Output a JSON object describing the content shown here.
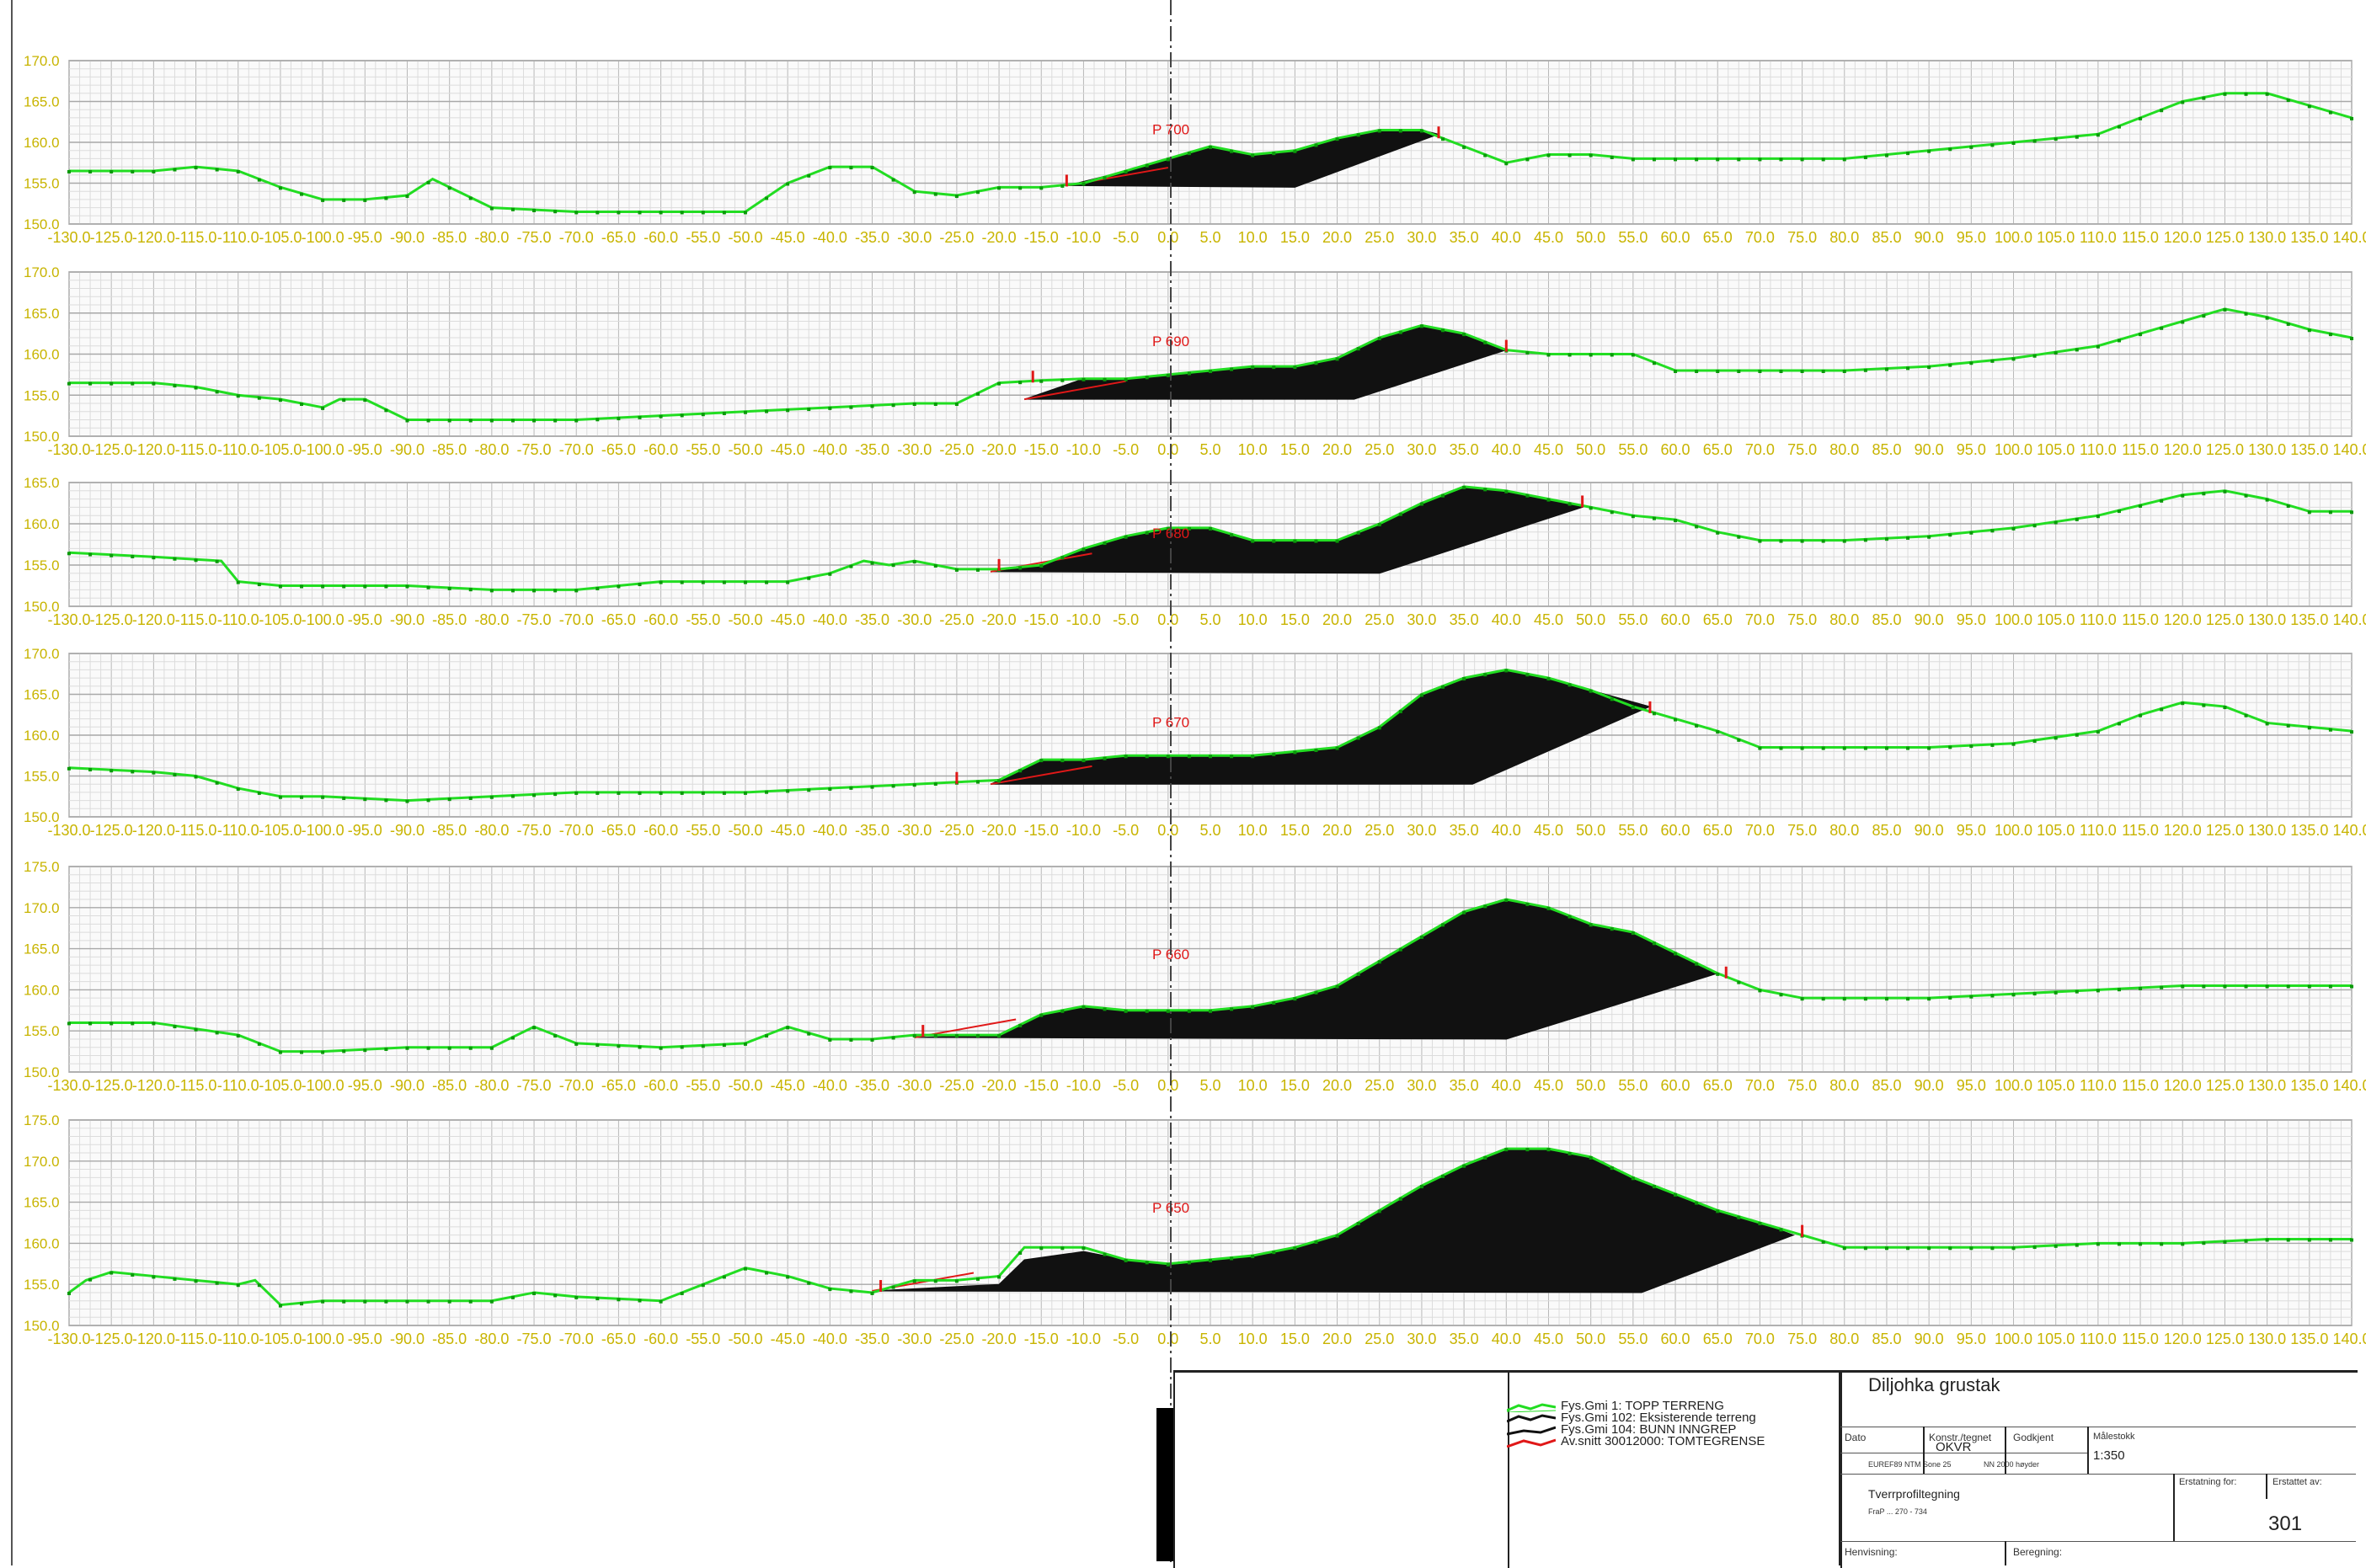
{
  "chart_data": [
    {
      "type": "area",
      "profile_label": "P 700",
      "ylim": [
        150,
        170
      ],
      "yticks": [
        "170.0",
        "165.0",
        "160.0",
        "155.0",
        "150.0"
      ],
      "xlim": [
        -130,
        140
      ],
      "terrain": {
        "x": [
          -130,
          -120,
          -115,
          -110,
          -105,
          -100,
          -95,
          -90,
          -87,
          -85,
          -80,
          -70,
          -60,
          -55,
          -50,
          -45,
          -40,
          -35,
          -30,
          -25,
          -20,
          -15,
          -10,
          -5,
          0,
          5,
          10,
          15,
          20,
          25,
          30,
          35,
          40,
          45,
          50,
          55,
          60,
          70,
          80,
          90,
          100,
          110,
          115,
          120,
          125,
          130,
          135,
          140
        ],
        "y": [
          156.5,
          156.5,
          157,
          156.5,
          154.5,
          153,
          153,
          153.5,
          155.5,
          154.5,
          152,
          151.5,
          151.5,
          151.5,
          151.5,
          155,
          157,
          157,
          154,
          153.5,
          154.5,
          154.5,
          155,
          156.5,
          158,
          159.5,
          158.5,
          159,
          160.5,
          161.5,
          161.5,
          159.5,
          157.5,
          158.5,
          158.5,
          158,
          158,
          158,
          158,
          159,
          160,
          161,
          163,
          165,
          166,
          166,
          164.5,
          163
        ]
      },
      "fill": {
        "x": [
          -12,
          -5,
          0,
          5,
          10,
          15,
          20,
          25,
          30,
          32,
          15
        ],
        "y": [
          154.7,
          156.5,
          158,
          159.5,
          158.5,
          159,
          160.5,
          161.5,
          161.5,
          161,
          154.5
        ]
      },
      "fill_base_right": 14,
      "limits": [
        -12,
        32
      ]
    },
    {
      "type": "area",
      "profile_label": "P 690",
      "ylim": [
        150,
        170
      ],
      "yticks": [
        "170.0",
        "165.0",
        "160.0",
        "155.0",
        "150.0"
      ],
      "xlim": [
        -130,
        140
      ],
      "terrain": {
        "x": [
          -130,
          -120,
          -115,
          -110,
          -105,
          -100,
          -98,
          -95,
          -90,
          -80,
          -70,
          -60,
          -50,
          -40,
          -30,
          -25,
          -20,
          -15,
          -10,
          -5,
          0,
          5,
          10,
          15,
          20,
          25,
          30,
          35,
          40,
          45,
          50,
          55,
          60,
          70,
          80,
          90,
          100,
          110,
          120,
          125,
          130,
          135,
          140
        ],
        "y": [
          156.5,
          156.5,
          156,
          155,
          154.5,
          153.5,
          154.5,
          154.5,
          152,
          152,
          152,
          152.5,
          153,
          153.5,
          154,
          154,
          156.5,
          156.8,
          157,
          157,
          157.5,
          158,
          158.5,
          158.5,
          159.5,
          162,
          163.5,
          162.5,
          160.5,
          160,
          160,
          160,
          158,
          158,
          158,
          158.5,
          159.5,
          161,
          164,
          165.5,
          164.5,
          163,
          162
        ]
      },
      "fill": {
        "x": [
          -17,
          -10,
          -5,
          0,
          5,
          10,
          15,
          20,
          25,
          30,
          35,
          40,
          22
        ],
        "y": [
          154.5,
          157,
          157,
          157.5,
          158,
          158.5,
          158.5,
          159.5,
          162,
          163.5,
          162.5,
          160.5,
          154.5
        ]
      },
      "fill_base_right": 22,
      "limits": [
        -16,
        40
      ]
    },
    {
      "type": "area",
      "profile_label": "P 680",
      "ylim": [
        150,
        165
      ],
      "yticks": [
        "165.0",
        "160.0",
        "155.0",
        "150.0"
      ],
      "xlim": [
        -130,
        140
      ],
      "terrain": {
        "x": [
          -130,
          -120,
          -112,
          -110,
          -105,
          -100,
          -90,
          -80,
          -70,
          -65,
          -60,
          -50,
          -45,
          -40,
          -36,
          -33,
          -30,
          -25,
          -20,
          -15,
          -10,
          -5,
          0,
          5,
          10,
          15,
          20,
          25,
          30,
          35,
          40,
          45,
          50,
          55,
          60,
          65,
          70,
          80,
          90,
          100,
          110,
          120,
          125,
          130,
          135,
          140
        ],
        "y": [
          156.5,
          156,
          155.5,
          153,
          152.5,
          152.5,
          152.5,
          152,
          152,
          152.5,
          153,
          153,
          153,
          154,
          155.5,
          155,
          155.5,
          154.5,
          154.5,
          155,
          157,
          158.5,
          159.5,
          159.5,
          158,
          158,
          158,
          160,
          162.5,
          164.5,
          164,
          163,
          162,
          161,
          160.5,
          159,
          158,
          158,
          158.5,
          159.5,
          161,
          163.5,
          164,
          163,
          161.5,
          161.5
        ]
      },
      "fill": {
        "x": [
          -21,
          -15,
          -10,
          -5,
          0,
          5,
          10,
          15,
          20,
          25,
          30,
          35,
          40,
          45,
          49,
          25
        ],
        "y": [
          154.2,
          155,
          157,
          158.5,
          159.5,
          159.5,
          158,
          158,
          158,
          160,
          162.5,
          164.5,
          164,
          163,
          162,
          154
        ]
      },
      "fill_base_right": 25,
      "limits": [
        -20,
        49
      ]
    },
    {
      "type": "area",
      "profile_label": "P 670",
      "ylim": [
        150,
        170
      ],
      "yticks": [
        "170.0",
        "165.0",
        "160.0",
        "155.0",
        "150.0"
      ],
      "xlim": [
        -130,
        140
      ],
      "terrain": {
        "x": [
          -130,
          -120,
          -115,
          -110,
          -105,
          -100,
          -90,
          -80,
          -70,
          -60,
          -50,
          -40,
          -30,
          -20,
          -15,
          -10,
          -5,
          0,
          5,
          10,
          15,
          20,
          25,
          30,
          35,
          40,
          45,
          50,
          55,
          60,
          65,
          70,
          80,
          90,
          100,
          110,
          115,
          120,
          125,
          130,
          135,
          140
        ],
        "y": [
          156,
          155.5,
          155,
          153.5,
          152.5,
          152.5,
          152,
          152.5,
          153,
          153,
          153,
          153.5,
          154,
          154.5,
          157,
          157,
          157.5,
          157.5,
          157.5,
          157.5,
          158,
          158.5,
          161,
          165,
          167,
          168,
          167,
          165.5,
          163.5,
          162,
          160.5,
          158.5,
          158.5,
          158.5,
          159,
          160.5,
          162.5,
          164,
          163.5,
          161.5,
          161,
          160.5
        ]
      },
      "fill": {
        "x": [
          -21,
          -15,
          -10,
          -5,
          0,
          5,
          10,
          15,
          20,
          25,
          30,
          35,
          40,
          45,
          50,
          57,
          36
        ],
        "y": [
          154,
          157,
          157,
          157.5,
          157.5,
          157.5,
          157.5,
          158,
          158.5,
          161,
          165,
          167,
          168,
          167,
          165.5,
          163.5,
          154
        ]
      },
      "fill_base_right": 36,
      "limits": [
        -25,
        57
      ]
    },
    {
      "type": "area",
      "profile_label": "P 660",
      "ylim": [
        150,
        175
      ],
      "yticks": [
        "175.0",
        "170.0",
        "165.0",
        "160.0",
        "155.0",
        "150.0"
      ],
      "xlim": [
        -130,
        140
      ],
      "terrain": {
        "x": [
          -130,
          -120,
          -110,
          -105,
          -100,
          -90,
          -80,
          -75,
          -70,
          -60,
          -50,
          -45,
          -40,
          -35,
          -30,
          -20,
          -15,
          -10,
          -5,
          0,
          5,
          10,
          15,
          20,
          25,
          30,
          35,
          40,
          45,
          50,
          55,
          60,
          65,
          70,
          75,
          80,
          90,
          100,
          110,
          120,
          130,
          140
        ],
        "y": [
          156,
          156,
          154.5,
          152.5,
          152.5,
          153,
          153,
          155.5,
          153.5,
          153,
          153.5,
          155.5,
          154,
          154,
          154.5,
          154.5,
          157,
          158,
          157.5,
          157.5,
          157.5,
          158,
          159,
          160.5,
          163.5,
          166.5,
          169.5,
          171,
          170,
          168,
          167,
          164.5,
          162,
          160,
          159,
          159,
          159,
          159.5,
          160,
          160.5,
          160.5,
          160.5
        ]
      },
      "fill": {
        "x": [
          -30,
          -20,
          -15,
          -10,
          -5,
          0,
          5,
          10,
          15,
          20,
          25,
          30,
          35,
          40,
          45,
          50,
          55,
          60,
          65,
          40
        ],
        "y": [
          154.2,
          154.5,
          157,
          158,
          157.5,
          157.5,
          157.5,
          158,
          159,
          160.5,
          163.5,
          166.5,
          169.5,
          171,
          170,
          168,
          167,
          164.5,
          162,
          154
        ]
      },
      "fill_base_right": 40,
      "limits": [
        -29,
        66
      ]
    },
    {
      "type": "area",
      "profile_label": "P 650",
      "ylim": [
        150,
        175
      ],
      "yticks": [
        "175.0",
        "170.0",
        "165.0",
        "160.0",
        "155.0",
        "150.0"
      ],
      "xlim": [
        -130,
        140
      ],
      "terrain": {
        "x": [
          -130,
          -128,
          -125,
          -120,
          -115,
          -110,
          -108,
          -105,
          -100,
          -90,
          -80,
          -75,
          -70,
          -60,
          -55,
          -50,
          -45,
          -40,
          -35,
          -30,
          -25,
          -20,
          -17,
          -10,
          -5,
          0,
          5,
          10,
          15,
          20,
          25,
          30,
          35,
          40,
          45,
          50,
          55,
          60,
          65,
          70,
          75,
          80,
          90,
          100,
          110,
          120,
          130,
          140
        ],
        "y": [
          154,
          155.5,
          156.5,
          156,
          155.5,
          155,
          155.5,
          152.5,
          153,
          153,
          153,
          154,
          153.5,
          153,
          155,
          157,
          156,
          154.5,
          154,
          155.5,
          155.5,
          156,
          159.5,
          159.5,
          158,
          157.5,
          158,
          158.5,
          159.5,
          161,
          164,
          167,
          169.5,
          171.5,
          171.5,
          170.5,
          168,
          166,
          164,
          162.5,
          161,
          159.5,
          159.5,
          159.5,
          160,
          160,
          160.5,
          160.5
        ]
      },
      "fill": {
        "x": [
          -35,
          -20,
          -17,
          -10,
          -5,
          0,
          5,
          10,
          15,
          20,
          25,
          30,
          35,
          40,
          45,
          50,
          55,
          60,
          65,
          70,
          74,
          56
        ],
        "y": [
          154.2,
          155,
          158,
          159,
          158,
          157.5,
          158,
          158.5,
          159.5,
          161,
          164,
          167,
          169.5,
          171.5,
          171.5,
          170.5,
          168,
          166,
          164,
          162.5,
          161,
          154
        ]
      },
      "fill_base_right": 56,
      "limits": [
        -34,
        75
      ]
    }
  ],
  "xtick_labels": [
    "-130.0",
    "-125.0",
    "-120.0",
    "-115.0",
    "-110.0",
    "-105.0",
    "-100.0",
    "-95.0",
    "-90.0",
    "-85.0",
    "-80.0",
    "-75.0",
    "-70.0",
    "-65.0",
    "-60.0",
    "-55.0",
    "-50.0",
    "-45.0",
    "-40.0",
    "-35.0",
    "-30.0",
    "-25.0",
    "-20.0",
    "-15.0",
    "-10.0",
    "-5.0",
    "0.0",
    "5.0",
    "10.0",
    "15.0",
    "20.0",
    "25.0",
    "30.0",
    "35.0",
    "40.0",
    "45.0",
    "50.0",
    "55.0",
    "60.0",
    "65.0",
    "70.0",
    "75.0",
    "80.0",
    "85.0",
    "90.0",
    "95.0",
    "100.0",
    "105.0",
    "110.0",
    "115.0",
    "120.0",
    "125.0",
    "130.0",
    "135.0",
    "140.0"
  ],
  "colors": {
    "terrain": "#22dd22",
    "fill": "#111111",
    "tick_text": "#c8b400",
    "grid": "#c8c8c8",
    "label": "#e01818",
    "limit": "#e01818"
  },
  "legend": [
    {
      "icon": "green-line-icon",
      "label": "Fys.Gmi    1: TOPP TERRENG"
    },
    {
      "icon": "black-line-icon",
      "label": "Fys.Gmi  102: Eksisterende terreng"
    },
    {
      "icon": "black-line-icon",
      "label": "Fys.Gmi  104: BUNN INNGREP"
    },
    {
      "icon": "red-line-icon",
      "label": "Av.snitt 30012000: TOMTEGRENSE"
    }
  ],
  "title_block": {
    "project": "Diljohka grustak",
    "dato_label": "Dato",
    "konstr_label": "Konstr./tegnet",
    "konstr_value": "OKVR",
    "godkjent_label": "Godkjent",
    "malestokk_label": "Målestokk",
    "malestokk_value": "1:350",
    "euref": "EUREF89 NTM Sone 25",
    "nn": "NN 2000 høyder",
    "drawing_type": "Tverrprofiltegning",
    "profile_range": "FraP ... 270 - 734",
    "erstatning_label": "Erstatning for:",
    "erstattet_label": "Erstattet av:",
    "drawing_number": "301",
    "henvisning_label": "Henvisning:",
    "beregning_label": "Beregning:"
  }
}
